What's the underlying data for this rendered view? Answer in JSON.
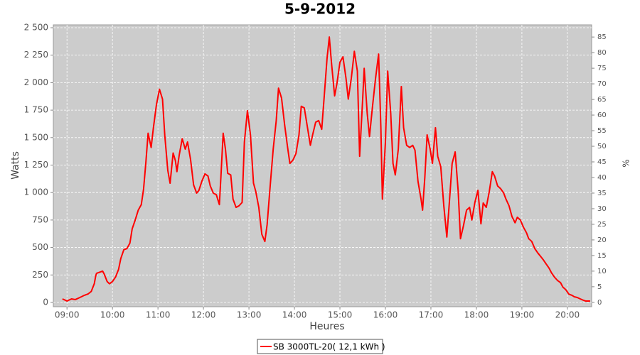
{
  "chart_data": {
    "type": "line",
    "title": "5-9-2012",
    "xlabel": "Heures",
    "ylabel": "Watts",
    "y2label": "%",
    "xlim": [
      "08:42",
      "20:32"
    ],
    "xticks": [
      "09:00",
      "10:00",
      "11:00",
      "12:00",
      "13:00",
      "14:00",
      "15:00",
      "16:00",
      "17:00",
      "18:00",
      "19:00",
      "20:00"
    ],
    "ylim": [
      -39,
      2526
    ],
    "yticks": [
      0,
      250,
      500,
      750,
      {
        "value": 1000,
        "label": "1 000"
      },
      {
        "value": 1250,
        "label": "1 250"
      },
      {
        "value": 1500,
        "label": "1 500"
      },
      {
        "value": 1750,
        "label": "1 750"
      },
      {
        "value": 2000,
        "label": "2 000"
      },
      {
        "value": 2250,
        "label": "2 250"
      },
      {
        "value": 2500,
        "label": "2 500"
      }
    ],
    "y2lim": [
      -1.4,
      88.9
    ],
    "y2ticks": [
      0,
      5,
      10,
      15,
      20,
      25,
      30,
      35,
      40,
      45,
      50,
      55,
      60,
      65,
      70,
      75,
      80,
      85
    ],
    "grid": true,
    "legend": "bottom",
    "x": [
      "08:54",
      "09:00",
      "09:06",
      "09:11",
      "09:17",
      "09:23",
      "09:28",
      "09:32",
      "09:36",
      "09:38",
      "09:39",
      "09:43",
      "09:47",
      "09:49",
      "09:53",
      "09:56",
      "10:00",
      "10:04",
      "10:08",
      "10:11",
      "10:15",
      "10:19",
      "10:23",
      "10:26",
      "10:30",
      "10:34",
      "10:38",
      "10:41",
      "10:44",
      "10:47",
      "10:51",
      "10:54",
      "10:58",
      "11:02",
      "11:06",
      "11:09",
      "11:13",
      "11:16",
      "11:20",
      "11:23",
      "11:25",
      "11:28",
      "11:32",
      "11:36",
      "11:39",
      "11:43",
      "11:47",
      "11:51",
      "11:54",
      "11:58",
      "12:02",
      "12:06",
      "12:09",
      "12:13",
      "12:17",
      "12:21",
      "12:23",
      "12:26",
      "12:29",
      "12:32",
      "12:36",
      "12:39",
      "12:43",
      "12:47",
      "12:51",
      "12:54",
      "12:58",
      "13:02",
      "13:06",
      "13:09",
      "13:13",
      "13:17",
      "13:21",
      "13:24",
      "13:28",
      "13:32",
      "13:36",
      "13:39",
      "13:43",
      "13:47",
      "13:51",
      "13:54",
      "13:58",
      "14:02",
      "14:06",
      "14:09",
      "14:13",
      "14:17",
      "14:21",
      "14:24",
      "14:28",
      "14:32",
      "14:36",
      "14:39",
      "14:43",
      "14:46",
      "14:49",
      "14:53",
      "14:56",
      "15:00",
      "15:04",
      "15:08",
      "15:11",
      "15:15",
      "15:19",
      "15:23",
      "15:26",
      "15:30",
      "15:32",
      "15:36",
      "15:39",
      "15:43",
      "15:47",
      "15:51",
      "15:54",
      "15:56",
      "16:00",
      "16:03",
      "16:07",
      "16:10",
      "16:13",
      "16:17",
      "16:21",
      "16:24",
      "16:28",
      "16:32",
      "16:36",
      "16:39",
      "16:43",
      "16:47",
      "16:49",
      "16:52",
      "16:55",
      "16:59",
      "17:02",
      "17:06",
      "17:09",
      "17:13",
      "17:17",
      "17:21",
      "17:24",
      "17:28",
      "17:32",
      "17:36",
      "17:39",
      "17:43",
      "17:47",
      "17:51",
      "17:54",
      "17:58",
      "18:02",
      "18:06",
      "18:09",
      "18:13",
      "18:17",
      "18:21",
      "18:24",
      "18:28",
      "18:32",
      "18:36",
      "18:39",
      "18:43",
      "18:47",
      "18:51",
      "18:54",
      "18:58",
      "19:02",
      "19:06",
      "19:09",
      "19:13",
      "19:17",
      "19:21",
      "19:24",
      "19:28",
      "19:32",
      "19:36",
      "19:39",
      "19:43",
      "19:47",
      "19:51",
      "19:54",
      "19:58",
      "20:02",
      "20:06",
      "20:09",
      "20:13",
      "20:17",
      "20:21",
      "20:24",
      "20:30"
    ],
    "series": [
      {
        "name": "SB 3000TL-20( 12,1 kWh )",
        "color": "#ff0000",
        "values": [
          32,
          13,
          32,
          26,
          45,
          65,
          78,
          100,
          170,
          245,
          265,
          275,
          285,
          260,
          190,
          170,
          190,
          230,
          300,
          400,
          480,
          490,
          540,
          670,
          750,
          840,
          890,
          1030,
          1270,
          1540,
          1410,
          1590,
          1800,
          1940,
          1850,
          1520,
          1200,
          1085,
          1360,
          1290,
          1190,
          1340,
          1490,
          1395,
          1460,
          1300,
          1070,
          995,
          1020,
          1105,
          1170,
          1150,
          1060,
          995,
          980,
          890,
          1140,
          1540,
          1395,
          1175,
          1160,
          940,
          865,
          880,
          910,
          1460,
          1745,
          1525,
          1085,
          1010,
          865,
          620,
          555,
          710,
          1060,
          1395,
          1655,
          1950,
          1860,
          1620,
          1410,
          1265,
          1295,
          1355,
          1525,
          1785,
          1770,
          1600,
          1430,
          1525,
          1640,
          1655,
          1575,
          1850,
          2220,
          2415,
          2170,
          1880,
          1990,
          2185,
          2235,
          2040,
          1850,
          2040,
          2285,
          2105,
          1330,
          1850,
          2130,
          1720,
          1510,
          1785,
          2040,
          2260,
          1590,
          940,
          1460,
          2105,
          1720,
          1265,
          1160,
          1395,
          1965,
          1590,
          1430,
          1410,
          1430,
          1385,
          1100,
          940,
          840,
          1140,
          1525,
          1395,
          1265,
          1590,
          1330,
          1235,
          880,
          595,
          880,
          1265,
          1370,
          1010,
          580,
          700,
          840,
          865,
          750,
          910,
          1020,
          715,
          905,
          865,
          1010,
          1190,
          1150,
          1060,
          1035,
          995,
          940,
          880,
          780,
          725,
          775,
          750,
          685,
          635,
          580,
          555,
          490,
          450,
          425,
          390,
          350,
          310,
          270,
          230,
          200,
          180,
          140,
          115,
          75,
          65,
          52,
          45,
          32,
          20,
          13,
          13
        ]
      }
    ]
  }
}
